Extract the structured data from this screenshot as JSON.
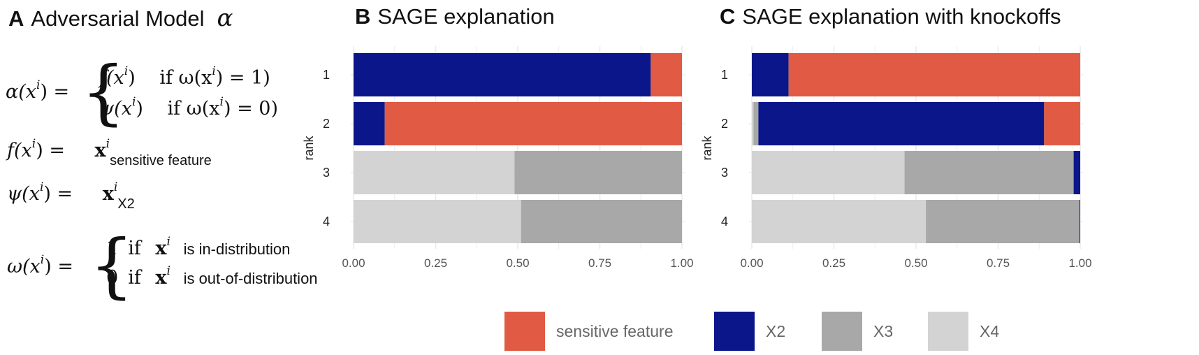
{
  "panels": {
    "a": {
      "letter": "A",
      "title": "Adversarial Model"
    },
    "b": {
      "letter": "B",
      "title": "SAGE explanation"
    },
    "c": {
      "letter": "C",
      "title": "SAGE explanation with knockoffs"
    }
  },
  "formulas": {
    "alpha_glyph": "α",
    "alpha_lhs": "α(x",
    "case1_f": "f(x",
    "case1_cond": "if ω(x",
    "case1_cond_end": ") = 1)",
    "case2_psi": "ψ(x",
    "case2_cond_end": ") = 0)",
    "f_lhs": "f(x",
    "f_sub": "sensitive feature",
    "psi_lhs": "ψ(x",
    "psi_sub": "X2",
    "omega_lhs": "ω(x",
    "omega_case1_text": "is in-distribution",
    "omega_case2_text": "is out-of-distribution",
    "sup_i": "i",
    "rhs_close": ") =",
    "paren_close": ")",
    "one": "1",
    "zero": "0",
    "if": "if",
    "x_bold": "x"
  },
  "colors": {
    "sensitive feature": "#e05a44",
    "X2": "#0b168a",
    "X3": "#a8a8a8",
    "X4": "#d3d3d3",
    "grid": "#ebebeb"
  },
  "chart_data": [
    {
      "type": "bar",
      "orientation": "horizontal",
      "stacked": true,
      "title": "SAGE explanation",
      "ylabel": "rank",
      "categories": [
        "1",
        "2",
        "3",
        "4"
      ],
      "xlim": [
        0,
        1
      ],
      "xticks": [
        "0.00",
        "0.25",
        "0.50",
        "0.75",
        "1.00"
      ],
      "series": [
        {
          "name": "X4",
          "values": [
            0,
            0,
            0.49,
            0.51
          ]
        },
        {
          "name": "X3",
          "values": [
            0,
            0,
            0.51,
            0.49
          ]
        },
        {
          "name": "X2",
          "values": [
            0.905,
            0.095,
            0,
            0
          ]
        },
        {
          "name": "sensitive feature",
          "values": [
            0.095,
            0.905,
            0,
            0
          ]
        }
      ]
    },
    {
      "type": "bar",
      "orientation": "horizontal",
      "stacked": true,
      "title": "SAGE explanation with knockoffs",
      "ylabel": "rank",
      "categories": [
        "1",
        "2",
        "3",
        "4"
      ],
      "xlim": [
        0,
        1
      ],
      "xticks": [
        "0.00",
        "0.25",
        "0.50",
        "0.75",
        "1.00"
      ],
      "series": [
        {
          "name": "X4",
          "values": [
            0,
            0.005,
            0.465,
            0.53
          ]
        },
        {
          "name": "X3",
          "values": [
            0,
            0.015,
            0.515,
            0.468
          ]
        },
        {
          "name": "X2",
          "values": [
            0.112,
            0.87,
            0.02,
            0.002
          ]
        },
        {
          "name": "sensitive feature",
          "values": [
            0.888,
            0.11,
            0,
            0
          ]
        }
      ]
    }
  ],
  "legend": [
    {
      "name": "sensitive feature",
      "label": "sensitive feature"
    },
    {
      "name": "X2",
      "label": "X2"
    },
    {
      "name": "X3",
      "label": "X3"
    },
    {
      "name": "X4",
      "label": "X4"
    }
  ]
}
